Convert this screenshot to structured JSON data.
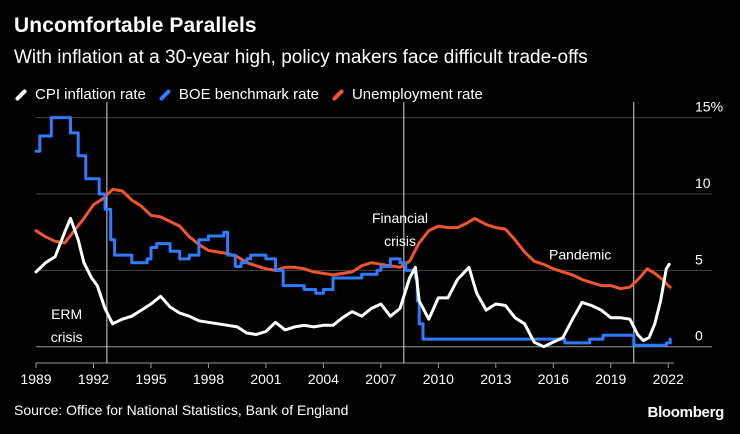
{
  "header": {
    "title": "Uncomfortable Parallels",
    "subtitle": "With inflation at a 30-year high, policy makers face difficult trade-offs"
  },
  "legend": [
    {
      "label": "CPI inflation rate",
      "color": "#ffffff"
    },
    {
      "label": "BOE benchmark rate",
      "color": "#2f7bff"
    },
    {
      "label": "Unemployment rate",
      "color": "#f0552d"
    }
  ],
  "footer": {
    "source": "Source: Office for National Statistics, Bank of England",
    "brand": "Bloomberg"
  },
  "chart_data": {
    "type": "line",
    "title": "Uncomfortable Parallels",
    "subtitle": "With inflation at a 30-year high, policy makers face difficult trade-offs",
    "xlabel": "",
    "ylabel": "%",
    "xlim": [
      1989,
      2022.3
    ],
    "ylim": [
      -1,
      15.5
    ],
    "x_ticks": [
      1989,
      1992,
      1995,
      1998,
      2001,
      2004,
      2007,
      2010,
      2013,
      2016,
      2019,
      2022
    ],
    "y_ticks": [
      {
        "value": 15,
        "label": "15%"
      },
      {
        "value": 10,
        "label": "10"
      },
      {
        "value": 5,
        "label": "5"
      },
      {
        "value": 0,
        "label": "0"
      }
    ],
    "grid": "horizontal",
    "series": [
      {
        "name": "CPI inflation rate",
        "color": "#ffffff",
        "points": [
          [
            1989,
            4.9
          ],
          [
            1989.5,
            5.5
          ],
          [
            1990,
            5.9
          ],
          [
            1990.5,
            7.5
          ],
          [
            1990.8,
            8.4
          ],
          [
            1991.2,
            7
          ],
          [
            1991.5,
            5.5
          ],
          [
            1991.9,
            4.5
          ],
          [
            1992.2,
            4
          ],
          [
            1992.6,
            2.5
          ],
          [
            1993,
            1.5
          ],
          [
            1993.5,
            1.8
          ],
          [
            1994,
            2
          ],
          [
            1994.5,
            2.4
          ],
          [
            1995,
            2.8
          ],
          [
            1995.5,
            3.3
          ],
          [
            1996,
            2.6
          ],
          [
            1996.5,
            2.2
          ],
          [
            1997,
            2
          ],
          [
            1997.5,
            1.7
          ],
          [
            1998,
            1.6
          ],
          [
            1998.5,
            1.5
          ],
          [
            1999,
            1.4
          ],
          [
            1999.5,
            1.3
          ],
          [
            2000,
            0.9
          ],
          [
            2000.5,
            0.8
          ],
          [
            2001,
            1
          ],
          [
            2001.5,
            1.6
          ],
          [
            2002,
            1.1
          ],
          [
            2002.5,
            1.3
          ],
          [
            2003,
            1.4
          ],
          [
            2003.5,
            1.3
          ],
          [
            2004,
            1.4
          ],
          [
            2004.5,
            1.4
          ],
          [
            2005,
            1.9
          ],
          [
            2005.5,
            2.3
          ],
          [
            2006,
            2
          ],
          [
            2006.5,
            2.5
          ],
          [
            2007,
            2.8
          ],
          [
            2007.5,
            2
          ],
          [
            2008,
            2.5
          ],
          [
            2008.5,
            4.5
          ],
          [
            2008.8,
            5.2
          ],
          [
            2009,
            3
          ],
          [
            2009.5,
            1.8
          ],
          [
            2010,
            3.2
          ],
          [
            2010.5,
            3.2
          ],
          [
            2011,
            4.4
          ],
          [
            2011.6,
            5.2
          ],
          [
            2012,
            3.5
          ],
          [
            2012.5,
            2.4
          ],
          [
            2013,
            2.8
          ],
          [
            2013.5,
            2.7
          ],
          [
            2014,
            1.9
          ],
          [
            2014.5,
            1.5
          ],
          [
            2015,
            0.3
          ],
          [
            2015.5,
            0
          ],
          [
            2016,
            0.3
          ],
          [
            2016.5,
            0.6
          ],
          [
            2017,
            1.8
          ],
          [
            2017.5,
            2.9
          ],
          [
            2018,
            2.7
          ],
          [
            2018.5,
            2.4
          ],
          [
            2019,
            1.9
          ],
          [
            2019.5,
            1.9
          ],
          [
            2020,
            1.8
          ],
          [
            2020.4,
            0.8
          ],
          [
            2020.7,
            0.4
          ],
          [
            2021,
            0.6
          ],
          [
            2021.3,
            1.5
          ],
          [
            2021.6,
            3
          ],
          [
            2021.9,
            5.1
          ],
          [
            2022.05,
            5.4
          ]
        ]
      },
      {
        "name": "BOE benchmark rate",
        "color": "#2f7bff",
        "points": [
          [
            1989,
            12.8
          ],
          [
            1989.2,
            13.8
          ],
          [
            1989.8,
            15
          ],
          [
            1990.7,
            15
          ],
          [
            1990.8,
            14
          ],
          [
            1991.2,
            12.5
          ],
          [
            1991.6,
            11
          ],
          [
            1992.3,
            10
          ],
          [
            1992.6,
            9
          ],
          [
            1992.9,
            7
          ],
          [
            1993.1,
            6
          ],
          [
            1994,
            5.5
          ],
          [
            1994.8,
            5.75
          ],
          [
            1995,
            6.5
          ],
          [
            1995.3,
            6.75
          ],
          [
            1996,
            6.25
          ],
          [
            1996.5,
            5.75
          ],
          [
            1997,
            6
          ],
          [
            1997.5,
            7
          ],
          [
            1998,
            7.25
          ],
          [
            1998.8,
            7.5
          ],
          [
            1999,
            6
          ],
          [
            1999.4,
            5.25
          ],
          [
            1999.7,
            5.5
          ],
          [
            2000,
            5.75
          ],
          [
            2000.2,
            6
          ],
          [
            2001,
            5.75
          ],
          [
            2001.5,
            5
          ],
          [
            2001.9,
            4
          ],
          [
            2003,
            3.75
          ],
          [
            2003.6,
            3.5
          ],
          [
            2004,
            3.75
          ],
          [
            2004.5,
            4.5
          ],
          [
            2005.6,
            4.5
          ],
          [
            2006,
            4.75
          ],
          [
            2006.8,
            5
          ],
          [
            2007,
            5.25
          ],
          [
            2007.5,
            5.75
          ],
          [
            2008,
            5.5
          ],
          [
            2008.3,
            5
          ],
          [
            2008.8,
            4.5
          ],
          [
            2008.9,
            3
          ],
          [
            2009,
            1.5
          ],
          [
            2009.2,
            0.5
          ],
          [
            2016.6,
            0.25
          ],
          [
            2017.9,
            0.5
          ],
          [
            2018.6,
            0.75
          ],
          [
            2020.2,
            0.1
          ],
          [
            2021.9,
            0.25
          ],
          [
            2022.1,
            0.5
          ]
        ]
      },
      {
        "name": "Unemployment rate",
        "color": "#f0552d",
        "points": [
          [
            1989,
            7.6
          ],
          [
            1989.5,
            7.2
          ],
          [
            1990,
            6.9
          ],
          [
            1990.5,
            6.8
          ],
          [
            1991,
            7.6
          ],
          [
            1991.5,
            8.4
          ],
          [
            1992,
            9.3
          ],
          [
            1992.5,
            9.7
          ],
          [
            1993,
            10.3
          ],
          [
            1993.5,
            10.2
          ],
          [
            1994,
            9.6
          ],
          [
            1994.5,
            9.2
          ],
          [
            1995,
            8.6
          ],
          [
            1995.5,
            8.5
          ],
          [
            1996,
            8.2
          ],
          [
            1996.5,
            7.9
          ],
          [
            1997,
            7.2
          ],
          [
            1997.5,
            6.7
          ],
          [
            1998,
            6.3
          ],
          [
            1998.5,
            6.2
          ],
          [
            1999,
            6.1
          ],
          [
            1999.5,
            5.9
          ],
          [
            2000,
            5.5
          ],
          [
            2000.5,
            5.3
          ],
          [
            2001,
            5.1
          ],
          [
            2001.5,
            5
          ],
          [
            2002,
            5.2
          ],
          [
            2002.5,
            5.2
          ],
          [
            2003,
            5.1
          ],
          [
            2003.5,
            4.9
          ],
          [
            2004,
            4.8
          ],
          [
            2004.5,
            4.7
          ],
          [
            2005,
            4.8
          ],
          [
            2005.5,
            4.9
          ],
          [
            2006,
            5.3
          ],
          [
            2006.5,
            5.5
          ],
          [
            2007,
            5.4
          ],
          [
            2007.5,
            5.3
          ],
          [
            2008,
            5.2
          ],
          [
            2008.5,
            5.6
          ],
          [
            2009,
            6.8
          ],
          [
            2009.5,
            7.6
          ],
          [
            2010,
            7.9
          ],
          [
            2010.5,
            7.8
          ],
          [
            2011,
            7.8
          ],
          [
            2011.5,
            8.1
          ],
          [
            2011.9,
            8.4
          ],
          [
            2012.5,
            8
          ],
          [
            2013,
            7.8
          ],
          [
            2013.5,
            7.7
          ],
          [
            2014,
            7
          ],
          [
            2014.5,
            6.2
          ],
          [
            2015,
            5.6
          ],
          [
            2015.5,
            5.4
          ],
          [
            2016,
            5.1
          ],
          [
            2016.5,
            4.9
          ],
          [
            2017,
            4.7
          ],
          [
            2017.5,
            4.4
          ],
          [
            2018,
            4.2
          ],
          [
            2018.5,
            4
          ],
          [
            2019,
            4
          ],
          [
            2019.5,
            3.8
          ],
          [
            2020,
            3.9
          ],
          [
            2020.5,
            4.5
          ],
          [
            2020.9,
            5.1
          ],
          [
            2021.3,
            4.8
          ],
          [
            2021.7,
            4.4
          ],
          [
            2022,
            4
          ],
          [
            2022.1,
            3.9
          ]
        ]
      }
    ],
    "vertical_lines": [
      1992.7,
      2008.2,
      2020.2
    ],
    "annotations": [
      {
        "text": "ERM",
        "x": 1990.6,
        "y": 1.8
      },
      {
        "text": "crisis",
        "x": 1990.6,
        "y": 0.3
      },
      {
        "text": "Financial",
        "x": 2008.0,
        "y": 8.1
      },
      {
        "text": "crisis",
        "x": 2008.0,
        "y": 6.6
      },
      {
        "text": "Pandemic",
        "x": 2017.4,
        "y": 5.7
      }
    ]
  }
}
